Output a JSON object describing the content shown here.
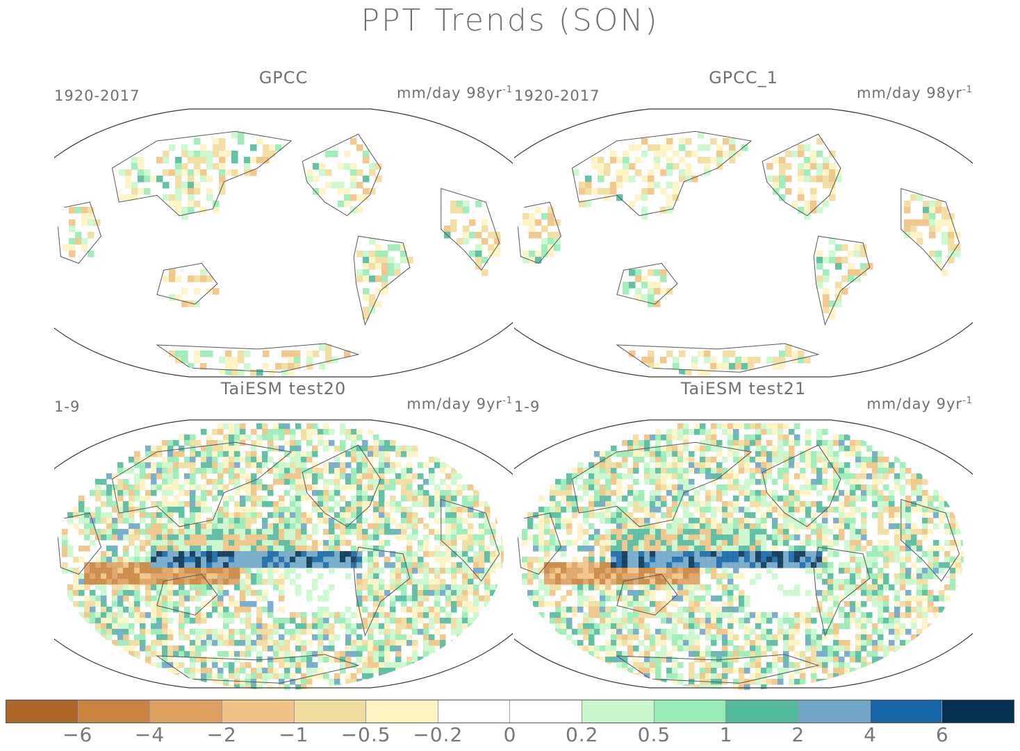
{
  "title": "PPT Trends (SON)",
  "panels": [
    {
      "title": "GPCC",
      "period": "1920-2017",
      "units": "mm/day 98yr",
      "units_sup": "-1"
    },
    {
      "title": "GPCC_1",
      "period": "1920-2017",
      "units": "mm/day 98yr",
      "units_sup": "-1"
    },
    {
      "title": "TaiESM test20",
      "period": "1-9",
      "units": "mm/day 9yr",
      "units_sup": "-1"
    },
    {
      "title": "TaiESM test21",
      "period": "1-9",
      "units": "mm/day 9yr",
      "units_sup": "-1"
    }
  ],
  "colorbar": {
    "colors": [
      "#b0682a",
      "#c8843e",
      "#dba060",
      "#efc383",
      "#f0dc9c",
      "#fdf3c2",
      "#ffffff",
      "#ffffff",
      "#c8f7cb",
      "#97ebb5",
      "#53b99d",
      "#6fa6c6",
      "#1466a6",
      "#053251"
    ],
    "labels": [
      "−6",
      "−4",
      "−2",
      "−1",
      "−0.5",
      "−0.2",
      "0",
      "0.2",
      "0.5",
      "1",
      "2",
      "4",
      "6"
    ]
  }
}
